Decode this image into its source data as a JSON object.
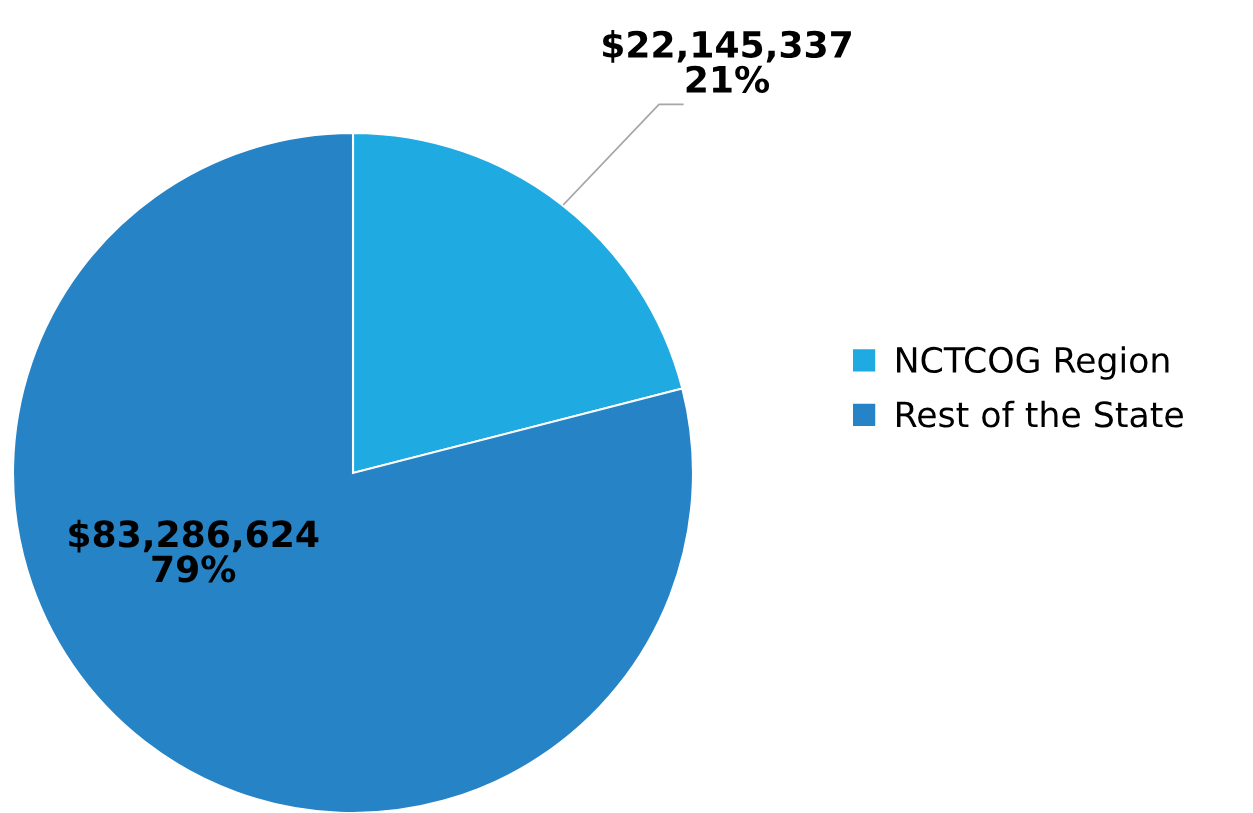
{
  "chart_data": {
    "type": "pie",
    "categories": [
      "NCTCOG Region",
      "Rest of the State"
    ],
    "values": [
      22145337,
      83286624
    ],
    "colors": [
      "#1fabe2",
      "#2683c6"
    ],
    "value_labels": [
      "$22,145,337\n21%",
      "$83,286,624\n79%"
    ],
    "legend": "right"
  }
}
